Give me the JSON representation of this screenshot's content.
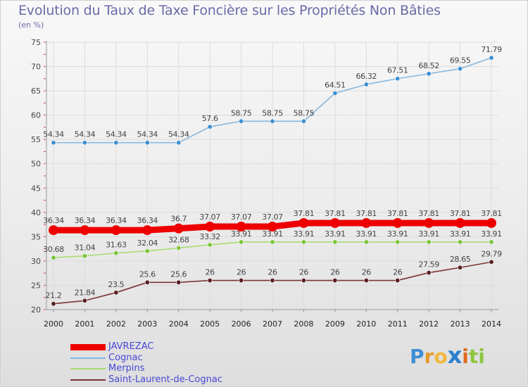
{
  "title": "Evolution du Taux de Taxe Foncière sur les Propriétés Non Bâties",
  "subtitle": "(en %)",
  "brand": {
    "letters": [
      {
        "ch": "P",
        "color": "#3e8fd6"
      },
      {
        "ch": "r",
        "color": "#e89a2a"
      },
      {
        "ch": "o",
        "color": "#f0b73a"
      },
      {
        "ch": "x",
        "color": "#2b7fcf"
      },
      {
        "ch": "i",
        "color": "#e06a1e"
      },
      {
        "ch": "t",
        "color": "#8dc63f"
      },
      {
        "ch": "i",
        "color": "#8dc63f"
      }
    ]
  },
  "chart_data": {
    "type": "line",
    "title": "Evolution du Taux de Taxe Foncière sur les Propriétés Non Bâties",
    "ylabel": "(en %)",
    "xlabel": "",
    "ylim": [
      20,
      75
    ],
    "yticks": [
      20,
      25,
      30,
      35,
      40,
      45,
      50,
      55,
      60,
      65,
      70,
      75
    ],
    "grid": true,
    "legend_position": "bottom-left",
    "categories": [
      "2000",
      "2001",
      "2002",
      "2003",
      "2004",
      "2005",
      "2006",
      "2007",
      "2008",
      "2009",
      "2010",
      "2011",
      "2012",
      "2013",
      "2014"
    ],
    "series": [
      {
        "name": "JAVREZAC",
        "color": "#ee0000",
        "emphasis": true,
        "values": [
          36.34,
          36.34,
          36.34,
          36.34,
          36.7,
          37.07,
          37.07,
          37.07,
          37.81,
          37.81,
          37.81,
          37.81,
          37.81,
          37.81,
          37.81
        ],
        "labels": [
          "36.34",
          "36.34",
          "36.34",
          "36.34",
          "36.7",
          "37.07",
          "37.07",
          "37.07",
          "37.81",
          "37.81",
          "37.81",
          "37.81",
          "37.81",
          "37.81",
          "37.81"
        ]
      },
      {
        "name": "Cognac",
        "color": "#86b7df",
        "marker": "#3d8fd0",
        "values": [
          54.34,
          54.34,
          54.34,
          54.34,
          54.34,
          57.6,
          58.75,
          58.75,
          58.75,
          64.51,
          66.32,
          67.51,
          68.52,
          69.55,
          71.79
        ],
        "labels": [
          "54.34",
          "54.34",
          "54.34",
          "54.34",
          "54.34",
          "57.6",
          "58.75",
          "58.75",
          "58.75",
          "64.51",
          "66.32",
          "67.51",
          "68.52",
          "69.55",
          "71.79"
        ]
      },
      {
        "name": "Merpins",
        "color": "#a8dd70",
        "marker": "#7cc43a",
        "values": [
          30.68,
          31.04,
          31.63,
          32.04,
          32.68,
          33.32,
          33.91,
          33.91,
          33.91,
          33.91,
          33.91,
          33.91,
          33.91,
          33.91,
          33.91
        ],
        "labels": [
          "30.68",
          "31.04",
          "31.63",
          "32.04",
          "32.68",
          "33.32",
          "33.91",
          "33.91",
          "33.91",
          "33.91",
          "33.91",
          "33.91",
          "33.91",
          "33.91",
          "33.91"
        ]
      },
      {
        "name": "Saint-Laurent-de-Cognac",
        "color": "#7a3535",
        "marker": "#5a1e1e",
        "values": [
          21.2,
          21.84,
          23.5,
          25.6,
          25.6,
          26,
          26,
          26,
          26,
          26,
          26,
          26,
          27.59,
          28.65,
          29.79
        ],
        "labels": [
          "21.2",
          "21.84",
          "23.5",
          "25.6",
          "25.6",
          "26",
          "26",
          "26",
          "26",
          "26",
          "26",
          "26",
          "27.59",
          "28.65",
          "29.79"
        ]
      }
    ]
  }
}
